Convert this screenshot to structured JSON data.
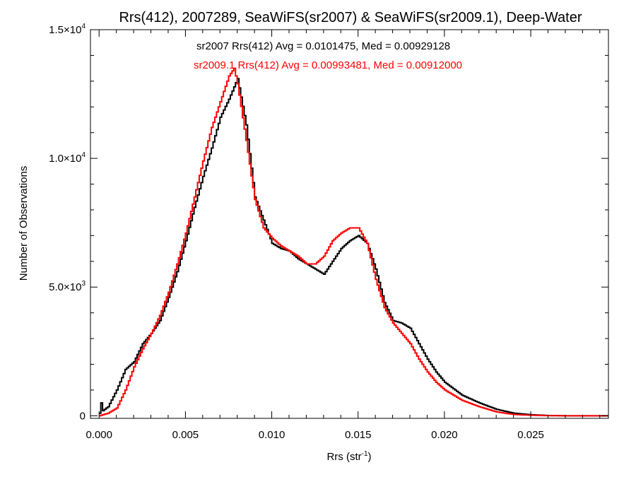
{
  "chart_data": {
    "type": "line",
    "title": "Rrs(412), 2007289, SeaWiFS(sr2007) & SeaWiFS(sr2009.1), Deep-Water",
    "xlabel": "Rrs (str",
    "xlabel_sup": "-1",
    "xlabel_close": ")",
    "ylabel": "Number of Observations",
    "xlim": [
      -0.0005,
      0.0295
    ],
    "ylim": [
      -100,
      15000
    ],
    "grid": false,
    "colors": {
      "sr2007": "#000000",
      "sr2009": "#ff0000"
    },
    "x_ticks": [
      {
        "value": 0.0,
        "label": "0.000"
      },
      {
        "value": 0.005,
        "label": "0.005"
      },
      {
        "value": 0.01,
        "label": "0.010"
      },
      {
        "value": 0.015,
        "label": "0.015"
      },
      {
        "value": 0.02,
        "label": "0.020"
      },
      {
        "value": 0.025,
        "label": "0.025"
      }
    ],
    "y_ticks": [
      {
        "value": 0,
        "mant": "0",
        "exp": ""
      },
      {
        "value": 5000,
        "mant": "5.0×10",
        "exp": "3"
      },
      {
        "value": 10000,
        "mant": "1.0×10",
        "exp": "4"
      },
      {
        "value": 15000,
        "mant": "1.5×10",
        "exp": "4"
      }
    ],
    "annotations": {
      "sr2007": "sr2007 Rrs(412) Avg = 0.0101475, Med = 0.00929128",
      "sr2009": "sr2009.1 Rrs(412) Avg = 0.00993481, Med = 0.00912000"
    },
    "series": [
      {
        "key": "sr2007",
        "x": [
          0.0,
          0.0001,
          0.0002,
          0.0005,
          0.001,
          0.0015,
          0.002,
          0.0025,
          0.003,
          0.0035,
          0.004,
          0.0045,
          0.005,
          0.0055,
          0.006,
          0.0065,
          0.007,
          0.0075,
          0.008,
          0.0085,
          0.009,
          0.0095,
          0.01,
          0.0105,
          0.011,
          0.0115,
          0.012,
          0.0125,
          0.013,
          0.0135,
          0.014,
          0.0145,
          0.015,
          0.0155,
          0.016,
          0.0165,
          0.017,
          0.0175,
          0.018,
          0.0185,
          0.019,
          0.0195,
          0.02,
          0.021,
          0.022,
          0.023,
          0.024,
          0.025,
          0.026,
          0.027,
          0.028,
          0.0295
        ],
        "values": [
          100,
          500,
          200,
          350,
          1000,
          1800,
          2100,
          2800,
          3200,
          3700,
          4600,
          5600,
          6800,
          8100,
          9300,
          10400,
          11600,
          12300,
          13100,
          11300,
          8500,
          7600,
          6700,
          6500,
          6400,
          6100,
          5900,
          5700,
          5500,
          6000,
          6500,
          6800,
          7000,
          6700,
          5700,
          4400,
          3700,
          3600,
          3400,
          2800,
          2200,
          1700,
          1300,
          800,
          500,
          250,
          100,
          40,
          10,
          0,
          0,
          0
        ]
      },
      {
        "key": "sr2009",
        "x": [
          0.0,
          0.0005,
          0.001,
          0.0015,
          0.002,
          0.0025,
          0.003,
          0.0035,
          0.004,
          0.0045,
          0.005,
          0.0055,
          0.006,
          0.0065,
          0.007,
          0.0075,
          0.0078,
          0.008,
          0.0085,
          0.009,
          0.0095,
          0.01,
          0.0105,
          0.011,
          0.0115,
          0.012,
          0.0125,
          0.013,
          0.0135,
          0.014,
          0.0145,
          0.015,
          0.0155,
          0.016,
          0.0165,
          0.017,
          0.0175,
          0.018,
          0.0185,
          0.019,
          0.0195,
          0.02,
          0.021,
          0.022,
          0.023,
          0.024,
          0.025,
          0.026,
          0.027,
          0.028,
          0.0295
        ],
        "values": [
          0,
          100,
          300,
          1000,
          1900,
          2600,
          3200,
          3900,
          4800,
          5900,
          7100,
          8500,
          9900,
          11200,
          12200,
          13200,
          13500,
          12900,
          10700,
          8400,
          7300,
          6900,
          6600,
          6400,
          6200,
          5900,
          5900,
          6200,
          6800,
          7100,
          7300,
          7300,
          6700,
          5300,
          4200,
          3600,
          3200,
          2800,
          2200,
          1700,
          1300,
          1000,
          600,
          350,
          150,
          50,
          20,
          5,
          0,
          0,
          0
        ]
      }
    ]
  }
}
